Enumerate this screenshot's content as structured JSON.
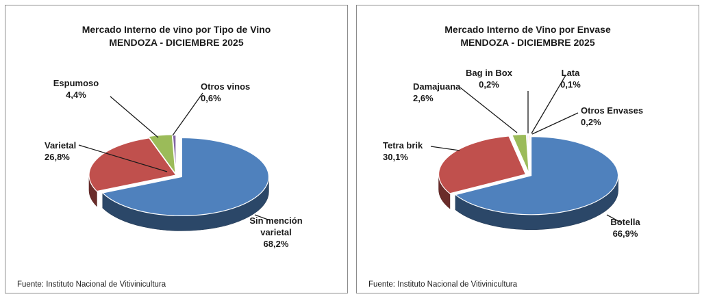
{
  "source_text": "Fuente: Instituto Nacional de Vitivinicultura",
  "chart_data": [
    {
      "type": "pie",
      "title": "Mercado Interno de vino por Tipo de Vino",
      "subtitle": "MENDOZA - DICIEMBRE 2025",
      "slices": [
        {
          "name": "Sin mención varietal",
          "label": [
            "Sin mención",
            "varietal"
          ],
          "value": 68.2,
          "display": "68,2%",
          "color": "#4f81bd"
        },
        {
          "name": "Varietal",
          "label": [
            "Varietal"
          ],
          "value": 26.8,
          "display": "26,8%",
          "color": "#c0504d"
        },
        {
          "name": "Espumoso",
          "label": [
            "Espumoso"
          ],
          "value": 4.4,
          "display": "4,4%",
          "color": "#9bbb59"
        },
        {
          "name": "Otros vinos",
          "label": [
            "Otros vinos"
          ],
          "value": 0.6,
          "display": "0,6%",
          "color": "#8064a2"
        }
      ]
    },
    {
      "type": "pie",
      "title": "Mercado Interno de Vino por Envase",
      "subtitle": "MENDOZA - DICIEMBRE 2025",
      "slices": [
        {
          "name": "Botella",
          "label": [
            "Botella"
          ],
          "value": 66.9,
          "display": "66,9%",
          "color": "#4f81bd"
        },
        {
          "name": "Tetra brik",
          "label": [
            "Tetra brik"
          ],
          "value": 30.1,
          "display": "30,1%",
          "color": "#c0504d"
        },
        {
          "name": "Damajuana",
          "label": [
            "Damajuana"
          ],
          "value": 2.6,
          "display": "2,6%",
          "color": "#9bbb59"
        },
        {
          "name": "Bag in Box",
          "label": [
            "Bag in Box"
          ],
          "value": 0.2,
          "display": "0,2%",
          "color": "#8064a2"
        },
        {
          "name": "Lata",
          "label": [
            "Lata"
          ],
          "value": 0.1,
          "display": "0,1%",
          "color": "#4bacc6"
        },
        {
          "name": "Otros Envases",
          "label": [
            "Otros Envases"
          ],
          "value": 0.2,
          "display": "0,2%",
          "color": "#f79646"
        }
      ]
    }
  ]
}
